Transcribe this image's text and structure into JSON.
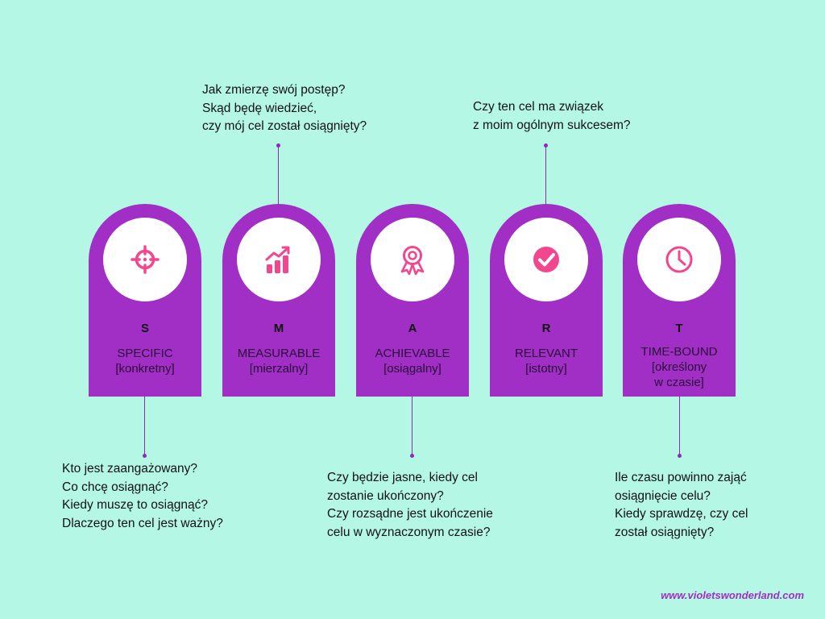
{
  "cards": [
    {
      "letter": "S",
      "label_lines": [
        "SPECIFIC",
        "[konkretny]"
      ],
      "icon": "target-icon"
    },
    {
      "letter": "M",
      "label_lines": [
        "MEASURABLE",
        "[mierzalny]"
      ],
      "icon": "growth-chart-icon"
    },
    {
      "letter": "A",
      "label_lines": [
        "ACHIEVABLE",
        "[osiągalny]"
      ],
      "icon": "award-ribbon-icon"
    },
    {
      "letter": "R",
      "label_lines": [
        "RELEVANT",
        "[istotny]"
      ],
      "icon": "check-circle-icon"
    },
    {
      "letter": "T",
      "label_lines": [
        "TIME-BOUND",
        "[określony",
        "w czasie]"
      ],
      "icon": "clock-icon"
    }
  ],
  "notes": {
    "specific": [
      "Kto jest zaangażowany?",
      "Co chcę osiągnąć?",
      "Kiedy muszę to osiągnąć?",
      "Dlaczego ten cel jest ważny?"
    ],
    "measurable": [
      "Jak zmierzę swój postęp?",
      "Skąd będę wiedzieć,",
      "czy mój cel został osiągnięty?"
    ],
    "achievable": [
      "Czy będzie jasne, kiedy cel",
      "zostanie ukończony?",
      "Czy rozsądne jest ukończenie",
      "celu w wyznaczonym czasie?"
    ],
    "relevant": [
      "Czy ten cel ma związek",
      "z moim ogólnym sukcesem?"
    ],
    "time_bound": [
      "Ile czasu powinno zająć",
      "osiągnięcie celu?",
      "Kiedy sprawdzę, czy cel",
      "został osiągnięty?"
    ]
  },
  "footer": "www.violetswonderland.com",
  "colors": {
    "background": "#B4F7E5",
    "card": "#A12FC6",
    "icon": "#F2468E",
    "accent": "#8E2BB3"
  }
}
